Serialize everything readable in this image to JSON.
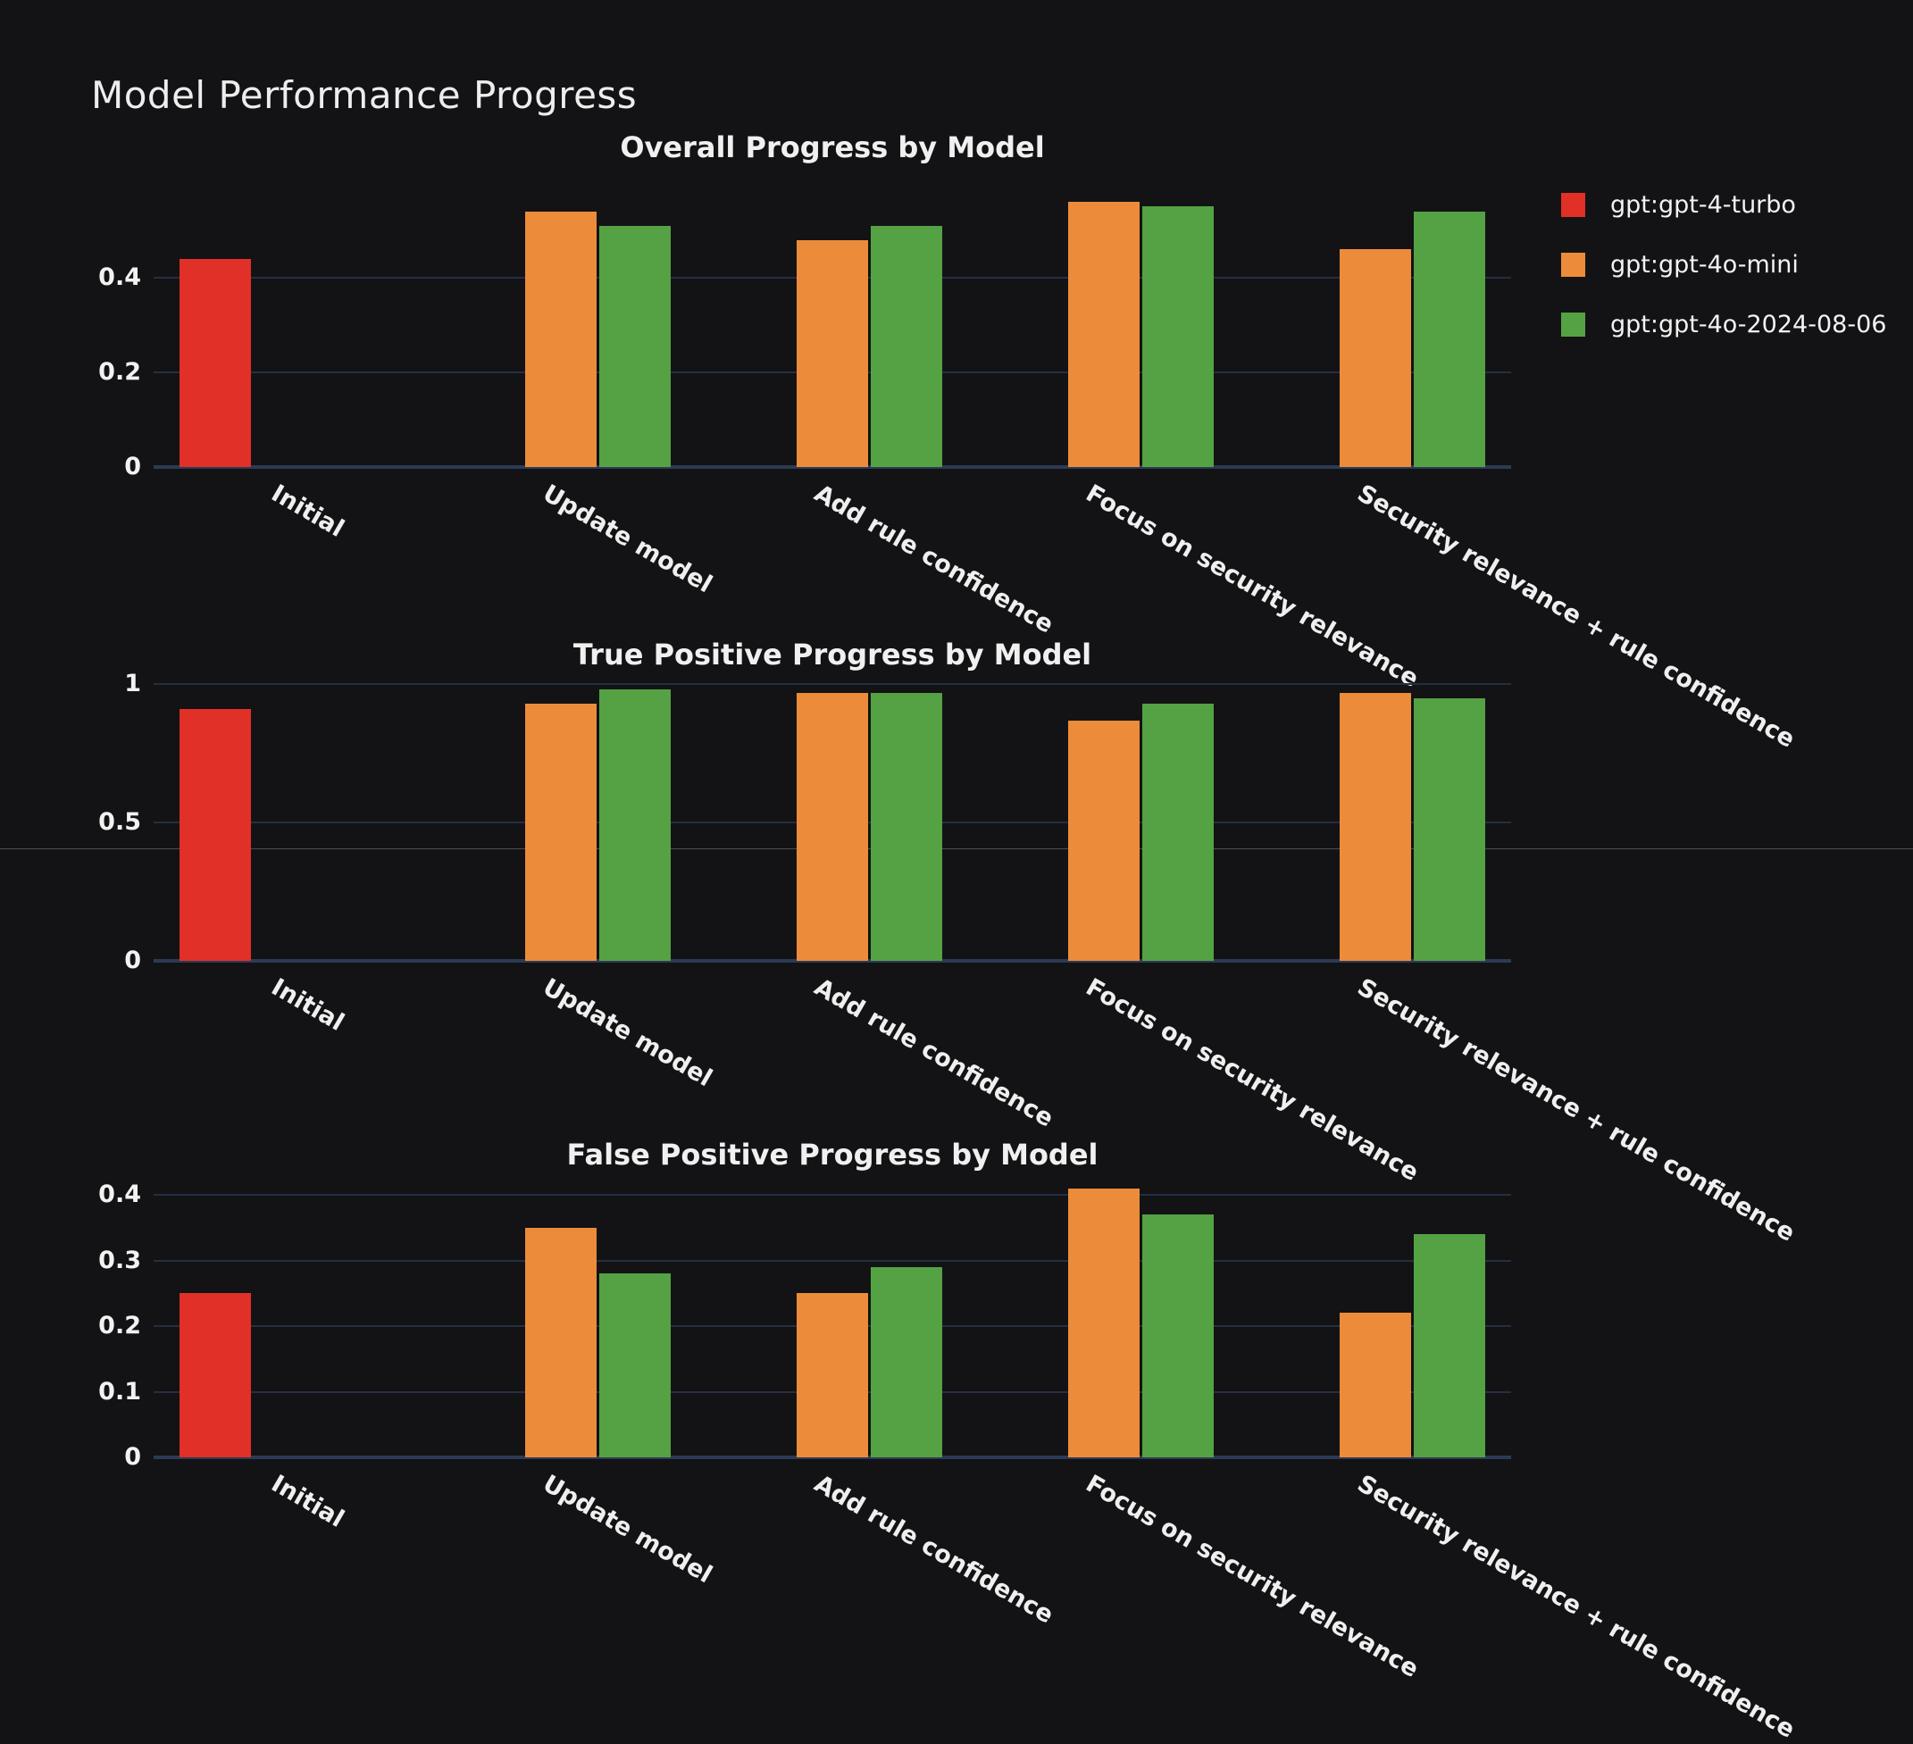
{
  "page": {
    "title": "Model Performance Progress",
    "background_color": "#131315",
    "gridline_color": "#252e42",
    "axis_line_color": "#2c3a55"
  },
  "legend": {
    "position": "right",
    "items": [
      {
        "label": "gpt:gpt-4-turbo",
        "color": "#e03028"
      },
      {
        "label": "gpt:gpt-4o-mini",
        "color": "#ec8c3a"
      },
      {
        "label": "gpt:gpt-4o-2024-08-06",
        "color": "#54a244"
      }
    ]
  },
  "chart_data": [
    {
      "type": "bar",
      "title": "Overall Progress by Model",
      "categories": [
        "Initial",
        "Update model",
        "Add rule confidence",
        "Focus on security relevance",
        "Security relevance + rule confidence"
      ],
      "series": [
        {
          "name": "gpt:gpt-4-turbo",
          "color": "#e03028",
          "values": [
            0.44,
            null,
            null,
            null,
            null
          ]
        },
        {
          "name": "gpt:gpt-4o-mini",
          "color": "#ec8c3a",
          "values": [
            null,
            0.54,
            0.48,
            0.56,
            0.46
          ]
        },
        {
          "name": "gpt:gpt-4o-2024-08-06",
          "color": "#54a244",
          "values": [
            null,
            0.51,
            0.51,
            0.55,
            0.54
          ]
        }
      ],
      "xlabel": "",
      "ylabel": "",
      "yticks": [
        0,
        0.2,
        0.4
      ],
      "ylim": [
        0,
        0.6
      ],
      "grid": true
    },
    {
      "type": "bar",
      "title": "True Positive Progress by Model",
      "categories": [
        "Initial",
        "Update model",
        "Add rule confidence",
        "Focus on security relevance",
        "Security relevance + rule confidence"
      ],
      "series": [
        {
          "name": "gpt:gpt-4-turbo",
          "color": "#e03028",
          "values": [
            0.91,
            null,
            null,
            null,
            null
          ]
        },
        {
          "name": "gpt:gpt-4o-mini",
          "color": "#ec8c3a",
          "values": [
            null,
            0.93,
            0.97,
            0.87,
            0.97
          ]
        },
        {
          "name": "gpt:gpt-4o-2024-08-06",
          "color": "#54a244",
          "values": [
            null,
            0.98,
            0.97,
            0.93,
            0.95
          ]
        }
      ],
      "xlabel": "",
      "ylabel": "",
      "yticks": [
        0,
        0.5,
        1
      ],
      "ylim": [
        0,
        1.03
      ],
      "grid": true
    },
    {
      "type": "bar",
      "title": "False Positive Progress by Model",
      "categories": [
        "Initial",
        "Update model",
        "Add rule confidence",
        "Focus on security relevance",
        "Security relevance + rule confidence"
      ],
      "series": [
        {
          "name": "gpt:gpt-4-turbo",
          "color": "#e03028",
          "values": [
            0.25,
            null,
            null,
            null,
            null
          ]
        },
        {
          "name": "gpt:gpt-4o-mini",
          "color": "#ec8c3a",
          "values": [
            null,
            0.35,
            0.25,
            0.41,
            0.22
          ]
        },
        {
          "name": "gpt:gpt-4o-2024-08-06",
          "color": "#54a244",
          "values": [
            null,
            0.28,
            0.29,
            0.37,
            0.34
          ]
        }
      ],
      "xlabel": "",
      "ylabel": "",
      "yticks": [
        0,
        0.1,
        0.2,
        0.3,
        0.4
      ],
      "ylim": [
        0,
        0.425
      ],
      "grid": true
    }
  ]
}
